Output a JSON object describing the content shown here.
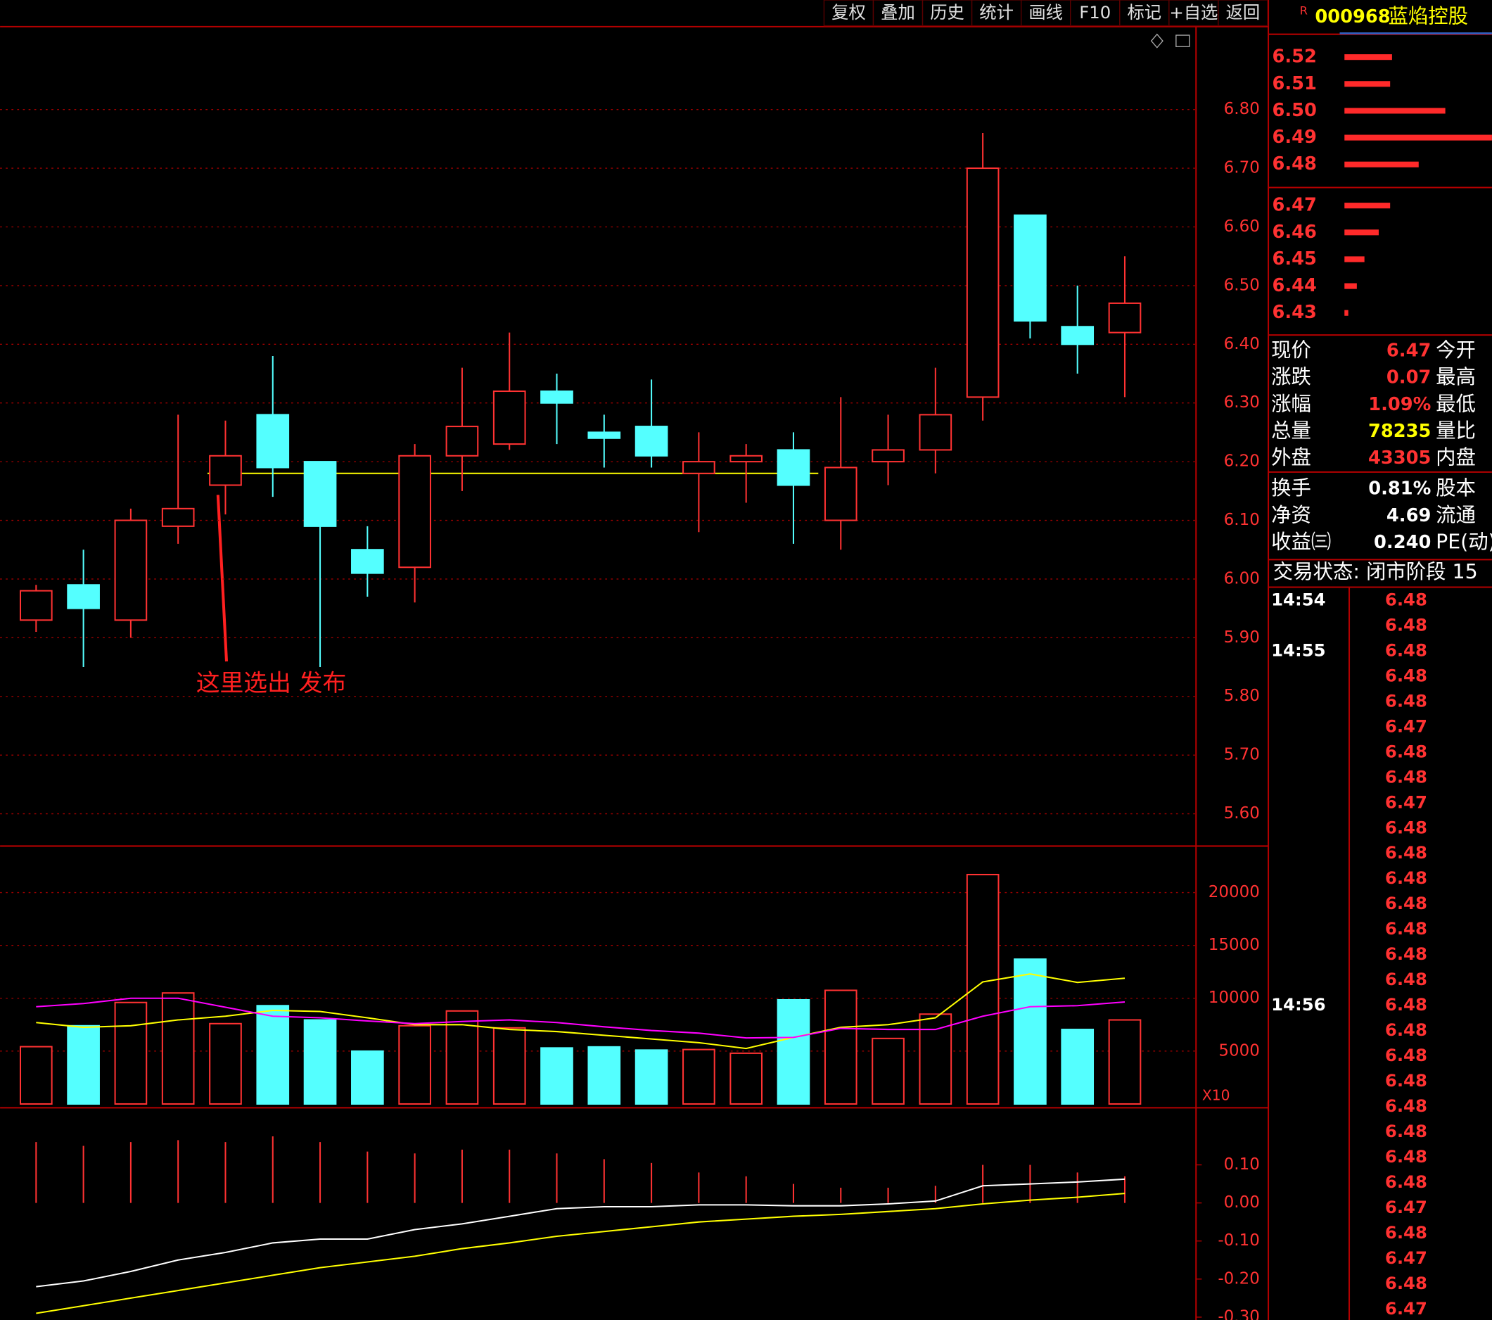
{
  "toolbar": [
    "复权",
    "叠加",
    "历史",
    "统计",
    "画线",
    "F10",
    "标记",
    "+自选",
    "返回"
  ],
  "stock": {
    "market": "R",
    "code": "000968",
    "name": "蓝焰控股"
  },
  "order_book": {
    "levels": [
      {
        "price": "6.52",
        "depth": 50
      },
      {
        "price": "6.51",
        "depth": 48
      },
      {
        "price": "6.50",
        "depth": 106
      },
      {
        "price": "6.49",
        "depth": 155
      },
      {
        "price": "6.48",
        "depth": 78
      },
      {
        "price": "6.47",
        "depth": 48
      },
      {
        "price": "6.46",
        "depth": 36
      },
      {
        "price": "6.45",
        "depth": 21
      },
      {
        "price": "6.44",
        "depth": 13
      },
      {
        "price": "6.43",
        "depth": 4
      }
    ]
  },
  "quote": {
    "rows": [
      {
        "label": "现价",
        "value": "6.47",
        "label2": "今开",
        "color": "#ff3232"
      },
      {
        "label": "涨跌",
        "value": "0.07",
        "label2": "最高",
        "color": "#ff3232"
      },
      {
        "label": "涨幅",
        "value": "1.09%",
        "label2": "最低",
        "color": "#ff3232"
      },
      {
        "label": "总量",
        "value": "78235",
        "label2": "量比",
        "color": "#ffff00"
      },
      {
        "label": "外盘",
        "value": "43305",
        "label2": "内盘",
        "color": "#ff3232"
      },
      {
        "label": "换手",
        "value": "0.81%",
        "label2": "股本",
        "color": "#ffffff"
      },
      {
        "label": "净资",
        "value": "4.69",
        "label2": "流通",
        "color": "#ffffff"
      },
      {
        "label": "收益㈢",
        "value": "0.240",
        "label2": "PE(动)",
        "color": "#ffffff"
      }
    ]
  },
  "trade_status": "交易状态: 闭市阶段 15",
  "ticks": [
    {
      "time": "14:54",
      "price": "6.48"
    },
    {
      "price": "6.48"
    },
    {
      "time": "14:55",
      "price": "6.48"
    },
    {
      "price": "6.48"
    },
    {
      "price": "6.48"
    },
    {
      "price": "6.47"
    },
    {
      "price": "6.48"
    },
    {
      "price": "6.48"
    },
    {
      "price": "6.47"
    },
    {
      "price": "6.48"
    },
    {
      "price": "6.48"
    },
    {
      "price": "6.48"
    },
    {
      "price": "6.48"
    },
    {
      "price": "6.48"
    },
    {
      "price": "6.48"
    },
    {
      "price": "6.48"
    },
    {
      "time": "14:56",
      "price": "6.48"
    },
    {
      "price": "6.48"
    },
    {
      "price": "6.48"
    },
    {
      "price": "6.48"
    },
    {
      "price": "6.48"
    },
    {
      "price": "6.48"
    },
    {
      "price": "6.48"
    },
    {
      "price": "6.48"
    },
    {
      "price": "6.47"
    },
    {
      "price": "6.48"
    },
    {
      "price": "6.47"
    },
    {
      "price": "6.48"
    },
    {
      "price": "6.47"
    }
  ],
  "annotation": "这里选出 发布",
  "volume_scale_label": "X10",
  "chart_data": [
    {
      "type": "candlestick",
      "open": [
        5.93,
        5.99,
        5.93,
        6.09,
        6.16,
        6.28,
        6.2,
        6.05,
        6.02,
        6.21,
        6.23,
        6.32,
        6.25,
        6.26,
        6.18,
        6.2,
        6.22,
        6.1,
        6.2,
        6.22,
        6.31,
        6.62,
        6.43,
        6.42
      ],
      "high": [
        5.99,
        6.05,
        6.12,
        6.28,
        6.27,
        6.38,
        6.2,
        6.09,
        6.23,
        6.36,
        6.42,
        6.35,
        6.28,
        6.34,
        6.25,
        6.23,
        6.25,
        6.31,
        6.28,
        6.36,
        6.76,
        6.62,
        6.5,
        6.55
      ],
      "low": [
        5.91,
        5.85,
        5.9,
        6.06,
        6.11,
        6.14,
        5.85,
        5.97,
        5.96,
        6.15,
        6.22,
        6.23,
        6.19,
        6.19,
        6.08,
        6.13,
        6.06,
        6.05,
        6.16,
        6.18,
        6.27,
        6.41,
        6.35,
        6.31
      ],
      "close": [
        5.98,
        5.95,
        6.1,
        6.12,
        6.21,
        6.19,
        6.09,
        6.01,
        6.21,
        6.26,
        6.32,
        6.3,
        6.24,
        6.21,
        6.2,
        6.21,
        6.16,
        6.19,
        6.22,
        6.28,
        6.7,
        6.44,
        6.4,
        6.47
      ],
      "ylim": [
        5.545,
        6.938
      ],
      "yticks": [
        {
          "value": 6.8,
          "label": "6.80"
        },
        {
          "value": 6.7,
          "label": "6.70"
        },
        {
          "value": 6.6,
          "label": "6.60"
        },
        {
          "value": 6.5,
          "label": "6.50"
        },
        {
          "value": 6.4,
          "label": "6.40"
        },
        {
          "value": 6.3,
          "label": "6.30"
        },
        {
          "value": 6.2,
          "label": "6.20"
        },
        {
          "value": 6.1,
          "label": "6.10"
        },
        {
          "value": 6.0,
          "label": "6.00"
        },
        {
          "value": 5.9,
          "label": "5.90"
        },
        {
          "value": 5.8,
          "label": "5.80"
        },
        {
          "value": 5.7,
          "label": "5.70"
        },
        {
          "value": 5.6,
          "label": "5.60"
        }
      ],
      "grid": true,
      "up_color": "#ff3232",
      "down_color": "#54ffff",
      "reference_line": {
        "value": 6.18,
        "color": "#ffff00"
      }
    },
    {
      "type": "volume",
      "values": [
        5420,
        7400,
        9600,
        10500,
        7600,
        9300,
        7950,
        5000,
        7400,
        8800,
        7200,
        5300,
        5400,
        5100,
        5150,
        4800,
        9850,
        10750,
        6200,
        8500,
        21700,
        13700,
        7050,
        7950
      ],
      "series": [
        {
          "color": "#ffff00",
          "values": [
            7700,
            7250,
            7400,
            7950,
            8300,
            8850,
            8750,
            8150,
            7500,
            7500,
            7050,
            6850,
            6500,
            6150,
            5800,
            5250,
            6300,
            7250,
            7500,
            8150,
            11550,
            12300,
            11500,
            11900
          ]
        },
        {
          "color": "#ff00ff",
          "values": [
            9200,
            9500,
            10000,
            10000,
            9150,
            8300,
            8150,
            7850,
            7600,
            7800,
            7950,
            7700,
            7300,
            6950,
            6700,
            6250,
            6300,
            7150,
            7050,
            7050,
            8300,
            9200,
            9300,
            9650
          ]
        }
      ],
      "ylim": [
        0,
        24400
      ],
      "yticks": [
        20000,
        15000,
        10000,
        5000
      ],
      "grid": true
    },
    {
      "type": "macd",
      "histogram": [
        0.16,
        0.15,
        0.16,
        0.165,
        0.16,
        0.175,
        0.16,
        0.135,
        0.13,
        0.14,
        0.14,
        0.13,
        0.115,
        0.105,
        0.08,
        0.07,
        0.05,
        0.04,
        0.04,
        0.045,
        0.1,
        0.1,
        0.08,
        0.07
      ],
      "histogram_color": "#ff3232",
      "series": [
        {
          "color": "#ffffff",
          "values": [
            -0.22,
            -0.205,
            -0.18,
            -0.15,
            -0.13,
            -0.105,
            -0.095,
            -0.095,
            -0.07,
            -0.055,
            -0.035,
            -0.015,
            -0.01,
            -0.01,
            -0.005,
            -0.005,
            -0.0075,
            -0.0075,
            -0.0025,
            0.005,
            0.045,
            0.05,
            0.055,
            0.0625
          ]
        },
        {
          "color": "#ffff00",
          "values": [
            -0.29,
            -0.27,
            -0.25,
            -0.23,
            -0.21,
            -0.19,
            -0.17,
            -0.155,
            -0.14,
            -0.12,
            -0.105,
            -0.0875,
            -0.075,
            -0.0625,
            -0.05,
            -0.0425,
            -0.035,
            -0.03,
            -0.0225,
            -0.015,
            -0.0025,
            0.0075,
            0.015,
            0.025
          ]
        }
      ],
      "ylim": [
        -0.3075,
        0.25
      ],
      "yticks": [
        {
          "value": 0.1,
          "label": "0.10"
        },
        {
          "value": 0,
          "label": "0.00"
        },
        {
          "value": -0.1,
          "label": "-0.10"
        },
        {
          "value": -0.2,
          "label": "-0.20"
        },
        {
          "value": -0.3,
          "label": "-0.30"
        }
      ],
      "grid": false
    }
  ]
}
